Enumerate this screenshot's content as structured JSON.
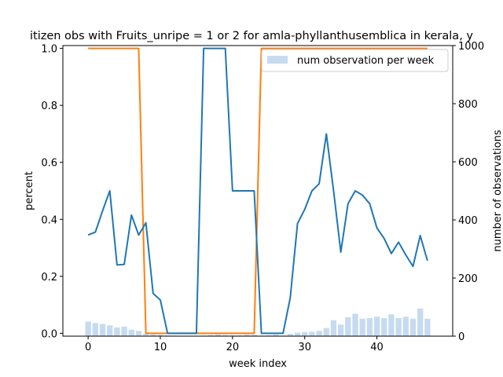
{
  "chart_data": {
    "type": "line",
    "title": "itizen obs with Fruits_unripe = 1 or 2 for amla-phyllanthusemblica in kerala, y",
    "xlabel": "week index",
    "ylabel": "percent",
    "y2label": "number of observations",
    "xlim": [
      -3.5,
      50.5
    ],
    "ylim": [
      -0.01,
      1.01
    ],
    "y2lim": [
      0,
      1000
    ],
    "xticks": [
      "0",
      "10",
      "20",
      "30",
      "40"
    ],
    "yticks": [
      "0.0",
      "0.2",
      "0.4",
      "0.6",
      "0.8",
      "1.0"
    ],
    "y2ticks": [
      "0",
      "200",
      "400",
      "600",
      "800",
      "1000"
    ],
    "legend_position": "top-right",
    "colors": {
      "blue_line": "#1f77b4",
      "orange_line": "#ff7f0e",
      "bars": "#c6dbef"
    },
    "bars": {
      "name": "num observation per week",
      "x": [
        0,
        1,
        2,
        3,
        4,
        5,
        6,
        7,
        8,
        9,
        10,
        11,
        12,
        13,
        14,
        15,
        16,
        17,
        18,
        19,
        20,
        21,
        22,
        23,
        24,
        25,
        26,
        27,
        28,
        29,
        30,
        31,
        32,
        33,
        34,
        35,
        36,
        37,
        38,
        39,
        40,
        41,
        42,
        43,
        44,
        45,
        46,
        47
      ],
      "values": [
        50,
        45,
        42,
        37,
        30,
        33,
        22,
        18,
        8,
        6,
        5,
        3,
        2,
        0,
        0,
        0,
        2,
        4,
        6,
        4,
        3,
        3,
        5,
        5,
        2,
        3,
        5,
        2,
        8,
        12,
        14,
        15,
        18,
        28,
        55,
        40,
        65,
        77,
        60,
        62,
        67,
        62,
        75,
        62,
        67,
        60,
        95,
        60
      ]
    },
    "blue_series": {
      "x": [
        0,
        1,
        2,
        3,
        4,
        5,
        6,
        7,
        8,
        9,
        10,
        11,
        12,
        15,
        16,
        19,
        20,
        23,
        24,
        27,
        28,
        29,
        30,
        31,
        32,
        33,
        34,
        35,
        36,
        37,
        38,
        39,
        40,
        41,
        42,
        43,
        44,
        45,
        46,
        47
      ],
      "values": [
        0.345,
        0.355,
        0.43,
        0.5,
        0.24,
        0.242,
        0.415,
        0.345,
        0.388,
        0.14,
        0.117,
        0,
        0,
        0,
        1,
        1,
        0.5,
        0.5,
        0,
        0,
        0.125,
        0.385,
        0.435,
        0.5,
        0.525,
        0.7,
        0.5,
        0.285,
        0.455,
        0.5,
        0.485,
        0.455,
        0.37,
        0.333,
        0.28,
        0.32,
        0.275,
        0.235,
        0.343,
        0.255
      ]
    },
    "orange_series": {
      "x": [
        0,
        7,
        8,
        23,
        24,
        47
      ],
      "values": [
        1,
        1,
        0,
        0,
        1,
        1
      ]
    }
  }
}
